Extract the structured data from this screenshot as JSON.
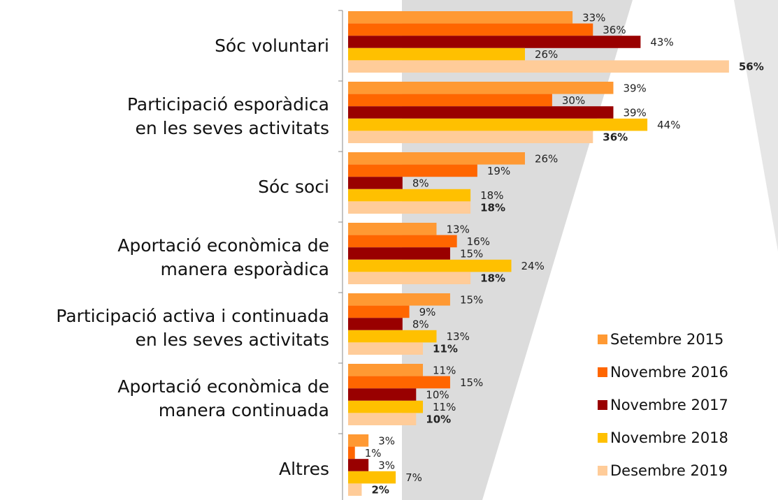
{
  "chart_data": {
    "type": "hbar",
    "categories": [
      "Sóc voluntari",
      "Participació esporàdica\nen les seves activitats",
      "Sóc soci",
      "Aportació econòmica de\nmanera esporàdica",
      "Participació activa i continuada\nen les seves activitats",
      "Aportació econòmica de\nmanera continuada",
      "Altres"
    ],
    "series": [
      {
        "name": "Setembre 2015",
        "color": "#ff9933",
        "values": [
          33,
          39,
          26,
          13,
          15,
          11,
          3
        ],
        "value_labels": [
          "33%",
          "39%",
          "26%",
          "13%",
          "15%",
          "11%",
          "3%"
        ]
      },
      {
        "name": "Novembre 2016",
        "color": "#ff6600",
        "values": [
          36,
          30,
          19,
          16,
          9,
          15,
          1
        ],
        "value_labels": [
          "36%",
          "30%",
          "19%",
          "16%",
          "9%",
          "15%",
          "1%"
        ]
      },
      {
        "name": "Novembre 2017",
        "color": "#990000",
        "values": [
          43,
          39,
          8,
          15,
          8,
          10,
          3
        ],
        "value_labels": [
          "43%",
          "39%",
          "8%",
          "15%",
          "8%",
          "10%",
          "3%"
        ]
      },
      {
        "name": "Novembre 2018",
        "color": "#ffc000",
        "values": [
          26,
          44,
          18,
          24,
          13,
          11,
          7
        ],
        "value_labels": [
          "26%",
          "44%",
          "18%",
          "24%",
          "13%",
          "11%",
          "7%"
        ]
      },
      {
        "name": "Desembre 2019",
        "color": "#ffcc99",
        "values": [
          56,
          36,
          18,
          18,
          11,
          10,
          2
        ],
        "value_labels": [
          "56%",
          "36%",
          "18%",
          "18%",
          "11%",
          "10%",
          "2%"
        ],
        "label_bold": true
      }
    ],
    "legend": "lower right"
  }
}
